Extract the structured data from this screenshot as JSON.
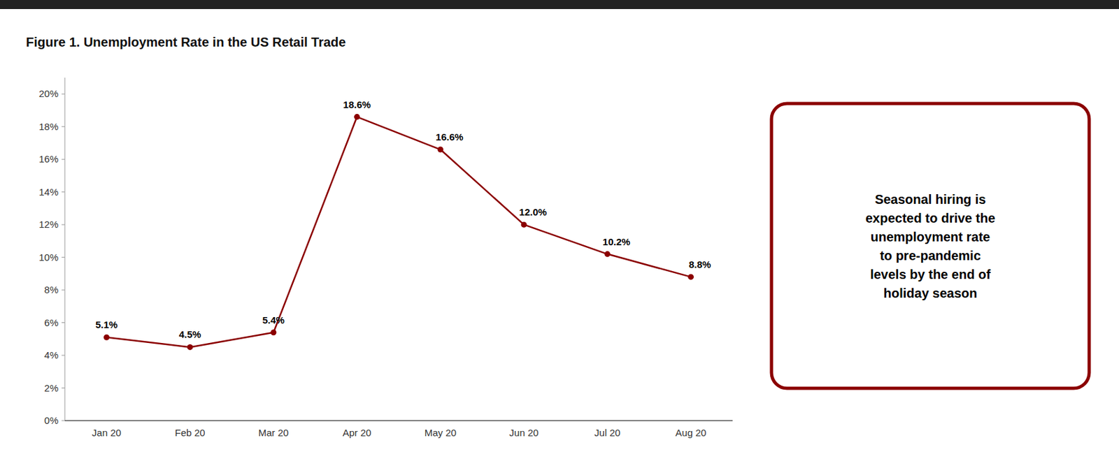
{
  "chart_data": {
    "type": "line",
    "title": "Figure 1. Unemployment Rate in the US Retail Trade",
    "categories": [
      "Jan 20",
      "Feb 20",
      "Mar 20",
      "Apr 20",
      "May 20",
      "Jun 20",
      "Jul 20",
      "Aug 20"
    ],
    "values": [
      5.1,
      4.5,
      5.4,
      18.6,
      16.6,
      12.0,
      10.2,
      8.8
    ],
    "value_labels": [
      "5.1%",
      "4.5%",
      "5.4%",
      "18.6%",
      "16.6%",
      "12.0%",
      "10.2%",
      "8.8%"
    ],
    "data_labels": true,
    "color": "#8B0000",
    "marker": "circle",
    "ylim": [
      0,
      21
    ],
    "yticks": [
      {
        "value": 0,
        "label": "0%"
      },
      {
        "value": 2,
        "label": "2%"
      },
      {
        "value": 4,
        "label": "4%"
      },
      {
        "value": 6,
        "label": "6%"
      },
      {
        "value": 8,
        "label": "8%"
      },
      {
        "value": 10,
        "label": "10%"
      },
      {
        "value": 12,
        "label": "12%"
      },
      {
        "value": 14,
        "label": "14%"
      },
      {
        "value": 16,
        "label": "16%"
      },
      {
        "value": 18,
        "label": "18%"
      },
      {
        "value": 20,
        "label": "20%"
      }
    ],
    "grid": false,
    "annotation": "Seasonal hiring is\nexpected to drive the\nunemployment rate\nto pre-pandemic\nlevels by the end of\nholiday season"
  }
}
